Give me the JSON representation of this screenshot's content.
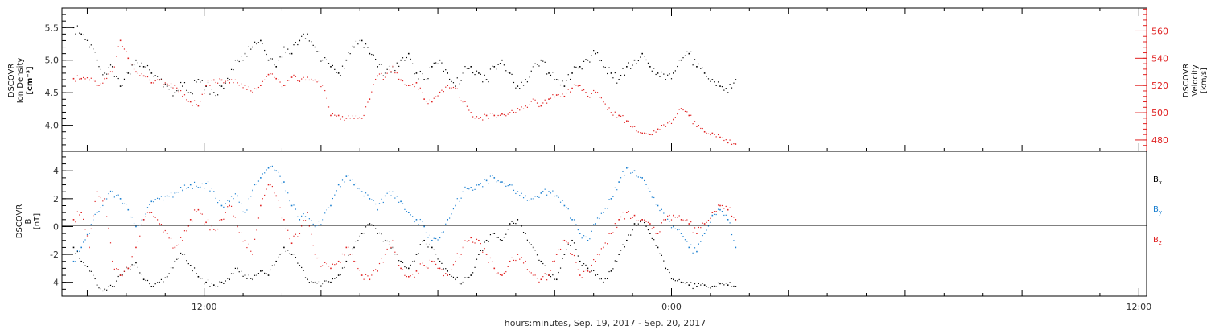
{
  "chart_data": [
    {
      "type": "scatter",
      "panel": "top",
      "left_ylabel": [
        "DSCOVR",
        "Ion Density",
        "[cm⁻³]"
      ],
      "right_ylabel": [
        "DSCOVR",
        "Velocity",
        "[km/s]"
      ],
      "ylim_left": [
        3.6,
        5.8
      ],
      "ylim_right": [
        471.7,
        576.8
      ],
      "yticks_left": [
        "4.0",
        "4.5",
        "5.0",
        "5.5"
      ],
      "yticks_right": [
        "480",
        "500",
        "520",
        "540",
        "560"
      ],
      "series": [
        {
          "axis": "left",
          "color": "#000000",
          "x": [
            5.3,
            5.7,
            6.1,
            6.5,
            6.9,
            7.3,
            7.7,
            8.1,
            8.5,
            8.9,
            9.3,
            9.7,
            10.1,
            10.5,
            10.9,
            11.3,
            11.7,
            12.1,
            12.5,
            12.9,
            13.3,
            13.7,
            14.1,
            14.5,
            14.9,
            15.3,
            15.7,
            16.1,
            16.5,
            16.9,
            17.3,
            17.7,
            18.1,
            18.5,
            18.9,
            19.3,
            19.7,
            20.1,
            20.5,
            20.9,
            21.3,
            21.7,
            22.1,
            22.5,
            22.9,
            23.3,
            23.7,
            24.1,
            24.5,
            24.9,
            25.3,
            25.7,
            26.1,
            26.5,
            26.9,
            27.3,
            27.7,
            28.1,
            28.5,
            28.9,
            29.3,
            29.7,
            30.1,
            30.5,
            30.9,
            31.3,
            31.7,
            32.1,
            32.5,
            32.9,
            33.3,
            33.7,
            34.1,
            34.5,
            34.9,
            35.3,
            35.7,
            36.1,
            36.5,
            36.9,
            37.3,
            37.7,
            38.1,
            38.5,
            38.9,
            39.3
          ],
          "y": [
            5.5,
            5.4,
            5.2,
            5.0,
            4.8,
            4.9,
            4.6,
            4.8,
            5.0,
            4.9,
            4.8,
            4.7,
            4.6,
            4.5,
            4.6,
            4.5,
            4.7,
            4.6,
            4.5,
            4.6,
            4.7,
            5.0,
            5.1,
            5.2,
            5.3,
            5.0,
            4.9,
            5.2,
            5.1,
            5.3,
            5.4,
            5.2,
            5.0,
            4.9,
            4.8,
            5.0,
            5.2,
            5.3,
            5.1,
            4.9,
            4.8,
            4.9,
            5.0,
            5.1,
            4.8,
            4.7,
            4.9,
            5.0,
            4.8,
            4.6,
            4.8,
            4.9,
            4.8,
            4.7,
            4.9,
            5.0,
            4.8,
            4.6,
            4.7,
            4.9,
            5.0,
            4.8,
            4.7,
            4.6,
            4.8,
            4.9,
            5.0,
            5.1,
            4.9,
            4.8,
            4.7,
            4.9,
            5.0,
            5.1,
            4.9,
            4.8,
            4.7,
            4.8,
            5.0,
            5.1,
            4.9,
            4.8,
            4.7,
            4.6,
            4.5,
            4.7
          ]
        },
        {
          "axis": "right",
          "color": "#e02020",
          "x": [
            5.3,
            5.7,
            6.1,
            6.5,
            6.9,
            7.3,
            7.7,
            8.1,
            8.5,
            8.9,
            9.3,
            9.7,
            10.1,
            10.5,
            10.9,
            11.3,
            11.7,
            12.1,
            12.5,
            12.9,
            13.3,
            13.7,
            14.1,
            14.5,
            14.9,
            15.3,
            15.7,
            16.1,
            16.5,
            16.9,
            17.3,
            17.7,
            18.1,
            18.5,
            18.9,
            19.3,
            19.7,
            20.1,
            20.5,
            20.9,
            21.3,
            21.7,
            22.1,
            22.5,
            22.9,
            23.3,
            23.7,
            24.1,
            24.5,
            24.9,
            25.3,
            25.7,
            26.1,
            26.5,
            26.9,
            27.3,
            27.7,
            28.1,
            28.5,
            28.9,
            29.3,
            29.7,
            30.1,
            30.5,
            30.9,
            31.3,
            31.7,
            32.1,
            32.5,
            32.9,
            33.3,
            33.7,
            34.1,
            34.5,
            34.9,
            35.3,
            35.7,
            36.1,
            36.5,
            36.9,
            37.3,
            37.7,
            38.1,
            38.5,
            38.9,
            39.3
          ],
          "y": [
            525,
            525,
            524,
            520,
            525,
            530,
            553,
            540,
            530,
            527,
            522,
            524,
            521,
            520,
            512,
            508,
            505,
            520,
            524,
            524,
            522,
            522,
            520,
            515,
            520,
            528,
            525,
            520,
            526,
            523,
            526,
            524,
            520,
            498,
            498,
            496,
            496,
            496,
            510,
            527,
            526,
            534,
            524,
            520,
            522,
            510,
            508,
            515,
            520,
            518,
            508,
            500,
            496,
            498,
            498,
            499,
            500,
            503,
            505,
            510,
            505,
            510,
            513,
            512,
            518,
            520,
            512,
            515,
            508,
            500,
            498,
            494,
            490,
            485,
            484,
            488,
            490,
            495,
            503,
            498,
            490,
            486,
            485,
            482,
            478,
            477
          ]
        }
      ]
    },
    {
      "type": "scatter",
      "panel": "bottom",
      "left_ylabel": [
        "DSCOVR",
        "B",
        "[nT]"
      ],
      "ylim": [
        -5,
        5.4
      ],
      "yticks": [
        "-4",
        "-2",
        "0",
        "2",
        "4"
      ],
      "legend_position": "right",
      "series": [
        {
          "name": "Bx",
          "color": "#000000",
          "x": [
            5.3,
            5.7,
            6.1,
            6.5,
            6.9,
            7.3,
            7.7,
            8.1,
            8.5,
            8.9,
            9.3,
            9.7,
            10.1,
            10.5,
            10.9,
            11.3,
            11.7,
            12.1,
            12.5,
            12.9,
            13.3,
            13.7,
            14.1,
            14.5,
            14.9,
            15.3,
            15.7,
            16.1,
            16.5,
            16.9,
            17.3,
            17.7,
            18.1,
            18.5,
            18.9,
            19.3,
            19.7,
            20.1,
            20.5,
            20.9,
            21.3,
            21.7,
            22.1,
            22.5,
            22.9,
            23.3,
            23.7,
            24.1,
            24.5,
            24.9,
            25.3,
            25.7,
            26.1,
            26.5,
            26.9,
            27.3,
            27.7,
            28.1,
            28.5,
            28.9,
            29.3,
            29.7,
            30.1,
            30.5,
            30.9,
            31.3,
            31.7,
            32.1,
            32.5,
            32.9,
            33.3,
            33.7,
            34.1,
            34.5,
            34.9,
            35.3,
            35.7,
            36.1,
            36.5,
            36.9,
            37.3,
            37.7,
            38.1,
            38.5,
            38.9,
            39.3
          ],
          "y": [
            -1.5,
            -2.5,
            -3.2,
            -4.2,
            -4.5,
            -4.3,
            -3.5,
            -3.0,
            -2.6,
            -3.8,
            -4.3,
            -4.0,
            -3.6,
            -2.5,
            -2.0,
            -2.8,
            -3.6,
            -4.0,
            -4.2,
            -4.0,
            -3.8,
            -3.0,
            -3.5,
            -3.8,
            -3.2,
            -3.5,
            -2.5,
            -1.5,
            -2.0,
            -2.8,
            -3.8,
            -4.0,
            -4.1,
            -4.0,
            -3.5,
            -2.5,
            -1.5,
            -0.5,
            0.2,
            -0.5,
            -1.0,
            -1.5,
            -2.5,
            -3.0,
            -2.0,
            -1.0,
            -1.5,
            -2.5,
            -3.2,
            -3.8,
            -4.0,
            -3.5,
            -2.0,
            -1.0,
            -0.5,
            -1.0,
            0.2,
            0.5,
            -0.5,
            -1.5,
            -2.5,
            -3.5,
            -3.8,
            -2.0,
            -1.0,
            -2.5,
            -3.0,
            -3.5,
            -4.0,
            -3.2,
            -2.0,
            -1.0,
            0.2,
            0.5,
            -0.5,
            -1.5,
            -3.0,
            -3.8,
            -4.0,
            -4.2,
            -4.3,
            -4.2,
            -4.3,
            -4.1,
            -4.2,
            -4.3
          ]
        },
        {
          "name": "By",
          "color": "#1a7fd0",
          "x": [
            5.3,
            5.7,
            6.1,
            6.5,
            6.9,
            7.3,
            7.7,
            8.1,
            8.5,
            8.9,
            9.3,
            9.7,
            10.1,
            10.5,
            10.9,
            11.3,
            11.7,
            12.1,
            12.5,
            12.9,
            13.3,
            13.7,
            14.1,
            14.5,
            14.9,
            15.3,
            15.7,
            16.1,
            16.5,
            16.9,
            17.3,
            17.7,
            18.1,
            18.5,
            18.9,
            19.3,
            19.7,
            20.1,
            20.5,
            20.9,
            21.3,
            21.7,
            22.1,
            22.5,
            22.9,
            23.3,
            23.7,
            24.1,
            24.5,
            24.9,
            25.3,
            25.7,
            26.1,
            26.5,
            26.9,
            27.3,
            27.7,
            28.1,
            28.5,
            28.9,
            29.3,
            29.7,
            30.1,
            30.5,
            30.9,
            31.3,
            31.7,
            32.1,
            32.5,
            32.9,
            33.3,
            33.7,
            34.1,
            34.5,
            34.9,
            35.3,
            35.7,
            36.1,
            36.5,
            36.9,
            37.3,
            37.7,
            38.1,
            38.5,
            38.9,
            39.3
          ],
          "y": [
            -2.5,
            -1.5,
            -0.5,
            1.0,
            2.0,
            2.5,
            2.0,
            1.2,
            0.0,
            0.5,
            1.8,
            2.0,
            2.2,
            2.4,
            2.6,
            3.0,
            2.8,
            3.1,
            2.5,
            1.5,
            1.8,
            2.2,
            1.0,
            2.6,
            3.5,
            4.2,
            4.0,
            3.2,
            1.5,
            0.5,
            1.0,
            0.0,
            0.5,
            1.5,
            3.0,
            3.6,
            3.0,
            2.5,
            2.0,
            1.2,
            2.2,
            2.5,
            1.8,
            1.0,
            0.5,
            0.0,
            -1.0,
            -0.8,
            0.5,
            1.5,
            2.5,
            2.8,
            3.0,
            3.3,
            3.5,
            3.2,
            3.0,
            2.5,
            2.2,
            2.0,
            2.4,
            2.5,
            2.2,
            1.5,
            0.5,
            -0.5,
            -1.0,
            0.2,
            1.0,
            2.0,
            3.2,
            4.2,
            4.0,
            3.5,
            2.5,
            1.5,
            0.5,
            0.0,
            -0.5,
            -1.5,
            -1.8,
            -0.5,
            0.8,
            1.2,
            0.5,
            -1.5
          ]
        },
        {
          "name": "Bz",
          "color": "#e02020",
          "x": [
            5.3,
            5.7,
            6.1,
            6.5,
            6.9,
            7.3,
            7.7,
            8.1,
            8.5,
            8.9,
            9.3,
            9.7,
            10.1,
            10.5,
            10.9,
            11.3,
            11.7,
            12.1,
            12.5,
            12.9,
            13.3,
            13.7,
            14.1,
            14.5,
            14.9,
            15.3,
            15.7,
            16.1,
            16.5,
            16.9,
            17.3,
            17.7,
            18.1,
            18.5,
            18.9,
            19.3,
            19.7,
            20.1,
            20.5,
            20.9,
            21.3,
            21.7,
            22.1,
            22.5,
            22.9,
            23.3,
            23.7,
            24.1,
            24.5,
            24.9,
            25.3,
            25.7,
            26.1,
            26.5,
            26.9,
            27.3,
            27.7,
            28.1,
            28.5,
            28.9,
            29.3,
            29.7,
            30.1,
            30.5,
            30.9,
            31.3,
            31.7,
            32.1,
            32.5,
            32.9,
            33.3,
            33.7,
            34.1,
            34.5,
            34.9,
            35.3,
            35.7,
            36.1,
            36.5,
            36.9,
            37.3,
            37.7,
            38.1,
            38.5,
            38.9,
            39.3
          ],
          "y": [
            0.5,
            1.0,
            -1.5,
            2.5,
            2.0,
            -2.5,
            -3.5,
            -3.0,
            -1.5,
            0.5,
            1.0,
            0.2,
            -0.5,
            -1.5,
            -1.0,
            0.5,
            1.2,
            0.3,
            -0.2,
            0.5,
            1.5,
            0.0,
            -1.0,
            -2.0,
            1.5,
            3.0,
            2.2,
            0.5,
            -1.2,
            -0.5,
            1.0,
            -2.0,
            -2.8,
            -3.0,
            -2.5,
            -1.5,
            -2.5,
            -3.5,
            -3.8,
            -3.2,
            -2.0,
            -1.0,
            -3.0,
            -3.6,
            -3.2,
            -2.8,
            -2.5,
            -3.0,
            -3.5,
            -2.5,
            -1.5,
            -0.8,
            -1.0,
            -2.0,
            -3.0,
            -3.5,
            -2.5,
            -2.0,
            -2.5,
            -3.5,
            -3.8,
            -3.5,
            -2.0,
            -1.0,
            -2.0,
            -3.5,
            -3.2,
            -2.5,
            -1.5,
            -0.5,
            0.5,
            1.0,
            0.8,
            0.5,
            0.2,
            -0.5,
            0.5,
            0.8,
            0.5,
            0.2,
            -0.5,
            0.2,
            1.0,
            1.5,
            1.2,
            0.5
          ]
        }
      ]
    }
  ],
  "axis": {
    "x_min": 4.7,
    "x_max": 60.4,
    "x_ticks": [
      "12:00",
      "0:00",
      "12:00"
    ],
    "xlabel": "hours:minutes, Sep. 19, 2017 - Sep. 20, 2017"
  },
  "legend": {
    "bx_label": "B",
    "bx_sub": "x",
    "by_label": "B",
    "by_sub": "y",
    "bz_label": "B",
    "bz_sub": "z"
  }
}
